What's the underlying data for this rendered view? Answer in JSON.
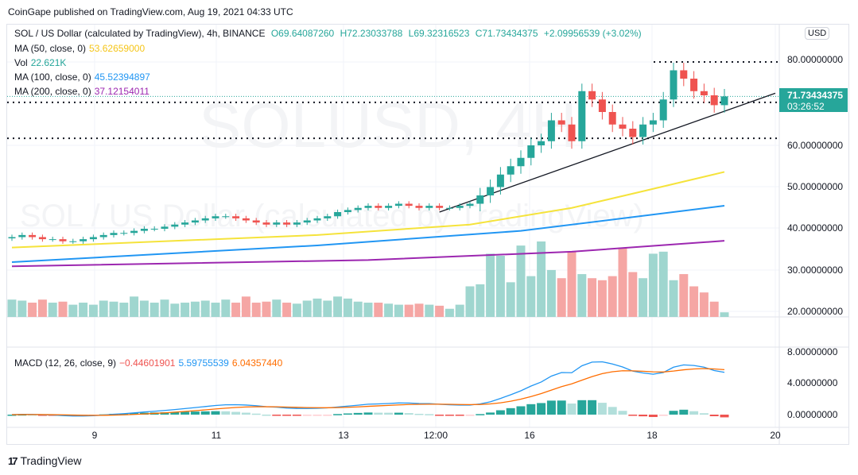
{
  "header": {
    "published": "CoinGape published on TradingView.com, Aug 19, 2021 04:33 UTC"
  },
  "legend": {
    "symbol": "SOL / US Dollar (calculated by TradingView), 4h, BINANCE",
    "open": "O69.64087260",
    "high": "H72.23033788",
    "low": "L69.32316523",
    "close": "C71.73434375",
    "change": "+2.09956539 (+3.02%)",
    "ma50_label": "MA (50, close, 0)",
    "ma50_value": "53.62659000",
    "vol_label": "Vol",
    "vol_value": "22.621K",
    "ma100_label": "MA (100, close, 0)",
    "ma100_value": "45.52394897",
    "ma200_label": "MA (200, close, 0)",
    "ma200_value": "37.12154011",
    "macd_label": "MACD (12, 26, close, 9)",
    "macd_hist": "−0.44601901",
    "macd_line": "5.59755539",
    "macd_signal": "6.04357440"
  },
  "watermark": {
    "ticker": "SOLUSD, 4H",
    "name": "SOL / US Dollar (calculated by TradingView)"
  },
  "price_axis": {
    "currency": "USD",
    "ticks": [
      "80.00000000",
      "60.00000000",
      "50.00000000",
      "40.00000000",
      "30.00000000",
      "20.00000000"
    ],
    "last_price": "71.73434375",
    "countdown": "03:26:52"
  },
  "macd_axis": {
    "ticks": [
      "8.00000000",
      "4.00000000",
      "0.00000000"
    ]
  },
  "time_axis": {
    "ticks": [
      "9",
      "11",
      "13",
      "12:00",
      "16",
      "18",
      "20"
    ]
  },
  "footer": {
    "brand": "TradingView"
  },
  "colors": {
    "up": "#26a69a",
    "down": "#ef5350",
    "ma50": "#f5e33b",
    "ma100": "#2196f3",
    "ma200": "#9c27b0",
    "macd": "#2196f3",
    "signal": "#ff6d00"
  },
  "chart_data": {
    "type": "candlestick",
    "interval": "4h",
    "closes": [
      38,
      38.5,
      38,
      37.5,
      37.5,
      37,
      37,
      37.5,
      38,
      38.5,
      39,
      39,
      39.5,
      40,
      40,
      40.5,
      41,
      41.5,
      42,
      42.5,
      43,
      43,
      42.5,
      42,
      41.5,
      41,
      41.5,
      41,
      41.5,
      42,
      42.5,
      43,
      44,
      44.5,
      45,
      45.5,
      45,
      45.5,
      46,
      45.5,
      45,
      45.5,
      45,
      45,
      45.5,
      46,
      48,
      50,
      53,
      55,
      57,
      60,
      61,
      66,
      65,
      61,
      73,
      71,
      68,
      65,
      64,
      62,
      65,
      66,
      71,
      78,
      76,
      73,
      72,
      69.64,
      71.73
    ],
    "volumes_k": [
      85,
      80,
      70,
      85,
      70,
      75,
      60,
      70,
      60,
      80,
      75,
      70,
      100,
      80,
      70,
      85,
      65,
      70,
      75,
      80,
      70,
      85,
      70,
      100,
      70,
      75,
      85,
      70,
      65,
      80,
      90,
      80,
      100,
      90,
      75,
      70,
      70,
      65,
      60,
      60,
      65,
      60,
      55,
      40,
      60,
      150,
      160,
      310,
      300,
      170,
      350,
      200,
      370,
      230,
      190,
      320,
      210,
      190,
      180,
      200,
      340,
      220,
      190,
      310,
      320,
      180,
      210,
      150,
      120,
      75,
      22.621
    ],
    "ma50": [
      [
        0,
        35.5
      ],
      [
        30,
        38.5
      ],
      [
        45,
        41
      ],
      [
        55,
        45
      ],
      [
        62,
        49
      ],
      [
        70,
        53.63
      ]
    ],
    "ma100": [
      [
        0,
        32
      ],
      [
        30,
        36
      ],
      [
        50,
        39.5
      ],
      [
        60,
        42.5
      ],
      [
        70,
        45.52
      ]
    ],
    "ma200": [
      [
        0,
        31
      ],
      [
        35,
        32.5
      ],
      [
        55,
        34.5
      ],
      [
        70,
        37.12
      ]
    ],
    "horizontal_levels": [
      80,
      70.3,
      61.7
    ],
    "trendline": [
      [
        42,
        44
      ],
      [
        75,
        72.5
      ]
    ],
    "ylim": [
      20,
      84
    ]
  }
}
